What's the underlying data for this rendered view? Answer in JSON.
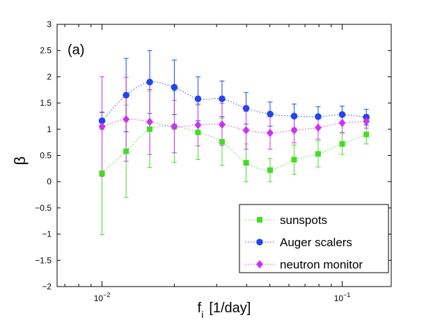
{
  "chart_data": {
    "type": "scatter",
    "panel_label": "(a)",
    "xscale": "log",
    "xlim": [
      0.0065,
      0.16
    ],
    "ylim": [
      -2,
      3
    ],
    "xticks": [
      0.01,
      0.1
    ],
    "xtick_labels": [
      {
        "base": "10",
        "exp": "−2"
      },
      {
        "base": "10",
        "exp": "−1"
      }
    ],
    "yticks": [
      -2,
      -1.5,
      -1,
      -0.5,
      0,
      0.5,
      1,
      1.5,
      2,
      2.5,
      3
    ],
    "ytick_labels": [
      "−2",
      "−1.5",
      "−1",
      "−0.5",
      "0",
      "0.5",
      "1",
      "1.5",
      "2",
      "2.5",
      "3"
    ],
    "xlabel": {
      "main": "f",
      "sub": "i",
      "rest": "[1/day]"
    },
    "ylabel": "β",
    "grid": false,
    "legend_position": "bottom-right",
    "x": [
      0.01,
      0.0126,
      0.0158,
      0.02,
      0.0251,
      0.0316,
      0.0398,
      0.0501,
      0.0631,
      0.0794,
      0.1,
      0.126
    ],
    "series": [
      {
        "name": "sunspots",
        "color": "#44dd22",
        "marker": "square",
        "values": [
          0.16,
          0.58,
          1.0,
          1.05,
          0.94,
          0.76,
          0.36,
          0.22,
          0.42,
          0.53,
          0.72,
          0.9
        ],
        "err": [
          1.17,
          0.88,
          0.73,
          0.68,
          0.52,
          0.45,
          0.36,
          0.22,
          0.28,
          0.25,
          0.2,
          0.18
        ]
      },
      {
        "name": "Auger scalers",
        "color": "#2244ee",
        "marker": "circle",
        "values": [
          1.16,
          1.65,
          1.9,
          1.8,
          1.58,
          1.58,
          1.4,
          1.29,
          1.25,
          1.24,
          1.28,
          1.23
        ],
        "err": [
          0.16,
          0.7,
          0.6,
          0.52,
          0.42,
          0.34,
          0.3,
          0.23,
          0.23,
          0.19,
          0.16,
          0.15
        ]
      },
      {
        "name": "neutron monitor",
        "color": "#cc33ee",
        "marker": "diamond",
        "values": [
          1.05,
          1.19,
          1.14,
          1.05,
          1.08,
          1.09,
          0.98,
          0.93,
          0.98,
          1.03,
          1.12,
          1.15
        ],
        "err": [
          0.95,
          0.8,
          0.62,
          0.5,
          0.4,
          0.4,
          0.36,
          0.31,
          0.24,
          0.22,
          0.18,
          0.13
        ]
      }
    ]
  }
}
